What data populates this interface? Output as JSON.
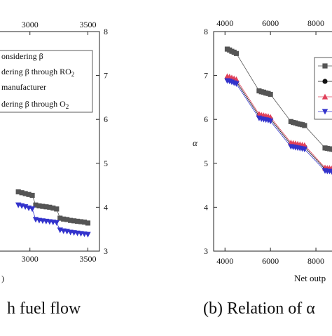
{
  "captions": {
    "left": "h fuel flow",
    "right": "(b) Relation of α"
  },
  "chart_data": [
    {
      "type": "scatter",
      "title": "",
      "xlabel": "",
      "ylabel": "",
      "xlim": [
        2500,
        3600
      ],
      "ylim": [
        3,
        8
      ],
      "x_ticks_bottom": [
        "3000",
        "3500"
      ],
      "x_ticks_top": [
        "3000",
        "3500"
      ],
      "y_ticks_right": [
        "3",
        "4",
        "5",
        "6",
        "7",
        "8"
      ],
      "x_partial_label": ")",
      "legend": {
        "position": "top-left",
        "entries": [
          "onsidering β",
          "dering β through RO",
          "manufacturer",
          "dering β through O"
        ],
        "subscripts": [
          "",
          "2",
          "",
          "2"
        ]
      },
      "series": [
        {
          "marker": "square",
          "color": "#555555",
          "x": [
            2900,
            2930,
            2960,
            2990,
            3020,
            3050,
            3080,
            3110,
            3140,
            3170,
            3200,
            3230,
            3260,
            3290,
            3320,
            3350,
            3380,
            3410,
            3440,
            3470,
            3500
          ],
          "y": [
            4.35,
            4.33,
            4.31,
            4.29,
            4.27,
            4.05,
            4.03,
            4.02,
            4.01,
            4.0,
            3.98,
            3.96,
            3.75,
            3.73,
            3.72,
            3.7,
            3.69,
            3.68,
            3.67,
            3.66,
            3.64
          ]
        },
        {
          "marker": "triangle-down",
          "color": "#3333cc",
          "x": [
            2900,
            2930,
            2960,
            2990,
            3020,
            3050,
            3080,
            3110,
            3140,
            3170,
            3200,
            3230,
            3260,
            3290,
            3320,
            3350,
            3380,
            3410,
            3440,
            3470,
            3500
          ],
          "y": [
            4.05,
            4.03,
            4.01,
            3.98,
            3.96,
            3.72,
            3.7,
            3.69,
            3.68,
            3.67,
            3.66,
            3.65,
            3.48,
            3.46,
            3.45,
            3.43,
            3.42,
            3.41,
            3.4,
            3.39,
            3.38
          ]
        }
      ]
    },
    {
      "type": "scatter",
      "title": "",
      "xlabel": "Net outp",
      "ylabel": "α",
      "xlim": [
        3500,
        9200
      ],
      "ylim": [
        3,
        8
      ],
      "x_ticks_bottom": [
        "4000",
        "6000",
        "8000"
      ],
      "x_ticks_top": [
        "4000",
        "6000",
        "8000"
      ],
      "y_ticks_left": [
        "3",
        "4",
        "5",
        "6",
        "7",
        "8"
      ],
      "legend": {
        "position": "top-right"
      },
      "series": [
        {
          "marker": "square",
          "color": "#555555",
          "x": [
            4100,
            4200,
            4300,
            4400,
            4500,
            5500,
            5600,
            5700,
            5800,
            5900,
            6000,
            6900,
            7000,
            7100,
            7200,
            7300,
            7400,
            7500,
            8400,
            8500,
            8600,
            8700,
            8800
          ],
          "y": [
            7.6,
            7.58,
            7.55,
            7.53,
            7.5,
            6.65,
            6.63,
            6.62,
            6.6,
            6.59,
            6.57,
            5.95,
            5.93,
            5.92,
            5.9,
            5.89,
            5.88,
            5.86,
            5.35,
            5.34,
            5.33,
            5.32,
            5.31
          ]
        },
        {
          "marker": "circle",
          "color": "#111111",
          "x": [
            4100,
            4200,
            4300,
            4400,
            4500,
            5500,
            5600,
            5700,
            5800,
            5900,
            6000,
            6900,
            7000,
            7100,
            7200,
            7300,
            7400,
            7500,
            8400,
            8500,
            8600,
            8700,
            8800
          ],
          "y": [
            6.93,
            6.92,
            6.9,
            6.88,
            6.86,
            6.08,
            6.06,
            6.05,
            6.04,
            6.03,
            6.01,
            5.43,
            5.42,
            5.41,
            5.4,
            5.39,
            5.38,
            5.37,
            4.87,
            4.86,
            4.86,
            4.85,
            4.85
          ]
        },
        {
          "marker": "triangle-up",
          "color": "#e0405a",
          "x": [
            4100,
            4200,
            4300,
            4400,
            4500,
            5500,
            5600,
            5700,
            5800,
            5900,
            6000,
            6900,
            7000,
            7100,
            7200,
            7300,
            7400,
            7500,
            8400,
            8500,
            8600,
            8700,
            8800
          ],
          "y": [
            6.98,
            6.97,
            6.95,
            6.93,
            6.91,
            6.12,
            6.1,
            6.09,
            6.08,
            6.07,
            6.05,
            5.47,
            5.46,
            5.45,
            5.44,
            5.43,
            5.42,
            5.41,
            4.9,
            4.89,
            4.89,
            4.88,
            4.88
          ]
        },
        {
          "marker": "triangle-down",
          "color": "#3333cc",
          "x": [
            4100,
            4200,
            4300,
            4400,
            4500,
            5500,
            5600,
            5700,
            5800,
            5900,
            6000,
            6900,
            7000,
            7100,
            7200,
            7300,
            7400,
            7500,
            8400,
            8500,
            8600,
            8700,
            8800
          ],
          "y": [
            6.88,
            6.87,
            6.85,
            6.83,
            6.81,
            6.03,
            6.01,
            6.0,
            5.99,
            5.98,
            5.96,
            5.38,
            5.37,
            5.36,
            5.35,
            5.34,
            5.33,
            5.32,
            4.83,
            4.82,
            4.82,
            4.81,
            4.81
          ]
        }
      ]
    }
  ]
}
